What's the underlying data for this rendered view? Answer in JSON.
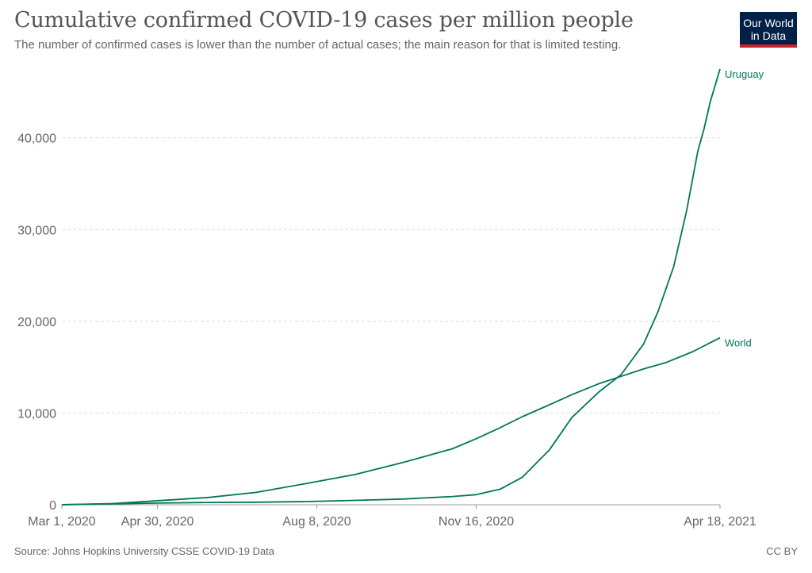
{
  "header": {
    "title": "Cumulative confirmed COVID-19 cases per million people",
    "subtitle": "The number of confirmed cases is lower than the number of actual cases; the main reason for that is limited testing."
  },
  "logo": {
    "line1": "Our World",
    "line2": "in Data",
    "bg_color": "#002147",
    "accent_color": "#c4242b"
  },
  "footer": {
    "source": "Source: Johns Hopkins University CSSE COVID-19 Data",
    "license": "CC BY"
  },
  "chart_data": {
    "type": "line",
    "title": "Cumulative confirmed COVID-19 cases per million people",
    "xlabel": "",
    "ylabel": "",
    "x_range": [
      "2020-03-01",
      "2021-04-18"
    ],
    "ylim": [
      0,
      48000
    ],
    "y_ticks": [
      {
        "value": 0,
        "label": "0"
      },
      {
        "value": 10000,
        "label": "10,000"
      },
      {
        "value": 20000,
        "label": "20,000"
      },
      {
        "value": 30000,
        "label": "30,000"
      },
      {
        "value": 40000,
        "label": "40,000"
      }
    ],
    "x_ticks": [
      {
        "date": "2020-03-01",
        "label": "Mar 1, 2020"
      },
      {
        "date": "2020-04-30",
        "label": "Apr 30, 2020"
      },
      {
        "date": "2020-08-08",
        "label": "Aug 8, 2020"
      },
      {
        "date": "2020-11-16",
        "label": "Nov 16, 2020"
      },
      {
        "date": "2021-04-18",
        "label": "Apr 18, 2021"
      }
    ],
    "grid": "horizontal-dashed",
    "line_color": "#00775a",
    "series": [
      {
        "name": "Uruguay",
        "points": [
          [
            "2020-03-01",
            0
          ],
          [
            "2020-04-01",
            100
          ],
          [
            "2020-05-01",
            180
          ],
          [
            "2020-06-01",
            250
          ],
          [
            "2020-07-01",
            280
          ],
          [
            "2020-08-01",
            350
          ],
          [
            "2020-09-01",
            480
          ],
          [
            "2020-10-01",
            620
          ],
          [
            "2020-11-01",
            900
          ],
          [
            "2020-11-16",
            1100
          ],
          [
            "2020-12-01",
            1700
          ],
          [
            "2020-12-15",
            3000
          ],
          [
            "2021-01-01",
            6000
          ],
          [
            "2021-01-15",
            9500
          ],
          [
            "2021-02-01",
            12300
          ],
          [
            "2021-02-15",
            14200
          ],
          [
            "2021-03-01",
            17500
          ],
          [
            "2021-03-10",
            21000
          ],
          [
            "2021-03-20",
            26000
          ],
          [
            "2021-03-28",
            32000
          ],
          [
            "2021-04-04",
            38500
          ],
          [
            "2021-04-08",
            41000
          ],
          [
            "2021-04-12",
            44000
          ],
          [
            "2021-04-18",
            47500
          ]
        ]
      },
      {
        "name": "World",
        "points": [
          [
            "2020-03-01",
            12
          ],
          [
            "2020-04-01",
            120
          ],
          [
            "2020-05-01",
            450
          ],
          [
            "2020-06-01",
            800
          ],
          [
            "2020-07-01",
            1350
          ],
          [
            "2020-08-01",
            2300
          ],
          [
            "2020-09-01",
            3300
          ],
          [
            "2020-10-01",
            4600
          ],
          [
            "2020-11-01",
            6100
          ],
          [
            "2020-11-16",
            7200
          ],
          [
            "2020-12-01",
            8400
          ],
          [
            "2020-12-15",
            9600
          ],
          [
            "2021-01-01",
            10900
          ],
          [
            "2021-01-15",
            12000
          ],
          [
            "2021-02-01",
            13200
          ],
          [
            "2021-02-15",
            14000
          ],
          [
            "2021-03-01",
            14800
          ],
          [
            "2021-03-15",
            15500
          ],
          [
            "2021-04-01",
            16700
          ],
          [
            "2021-04-18",
            18200
          ]
        ]
      }
    ]
  }
}
